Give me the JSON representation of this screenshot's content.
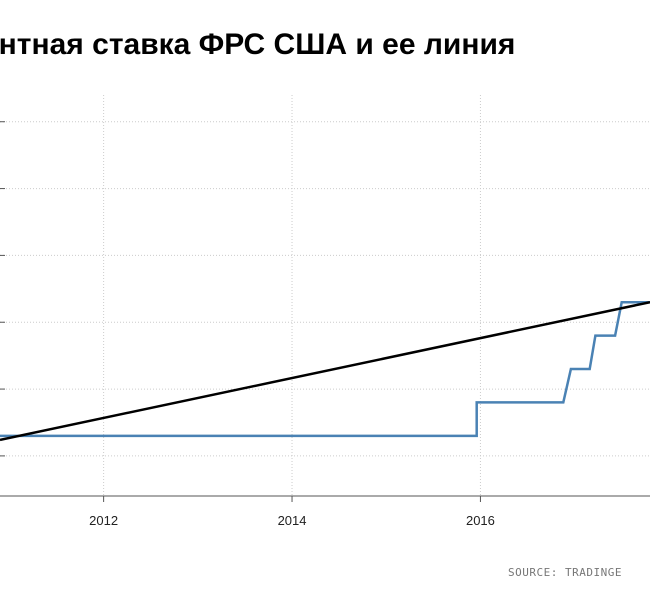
{
  "chart_data": {
    "type": "line",
    "title": "ентная ставка ФРС США и ее линия",
    "xlabel": "",
    "ylabel": "",
    "x_ticks": [
      "2012",
      "2014",
      "2016"
    ],
    "x_tick_values": [
      2012,
      2014,
      2016
    ],
    "xlim": [
      2010.9,
      2017.8
    ],
    "ylim": [
      -0.3,
      2.7
    ],
    "grid": true,
    "legend": "none",
    "colors": {
      "rate": "#4a82b4",
      "trend": "#000000",
      "grid": "#cccccc",
      "axis": "#555555"
    },
    "series": [
      {
        "values": [
          [
            2010.9,
            0.15
          ],
          [
            2015.96,
            0.15
          ],
          [
            2015.96,
            0.4
          ],
          [
            2016.88,
            0.4
          ],
          [
            2016.96,
            0.65
          ],
          [
            2017.16,
            0.65
          ],
          [
            2017.22,
            0.9
          ],
          [
            2017.43,
            0.9
          ],
          [
            2017.5,
            1.15
          ],
          [
            2017.8,
            1.15
          ]
        ]
      },
      {
        "values": [
          [
            2010.9,
            0.12
          ],
          [
            2017.8,
            1.15
          ]
        ]
      }
    ]
  },
  "source": "SOURCE: TRADINGE"
}
